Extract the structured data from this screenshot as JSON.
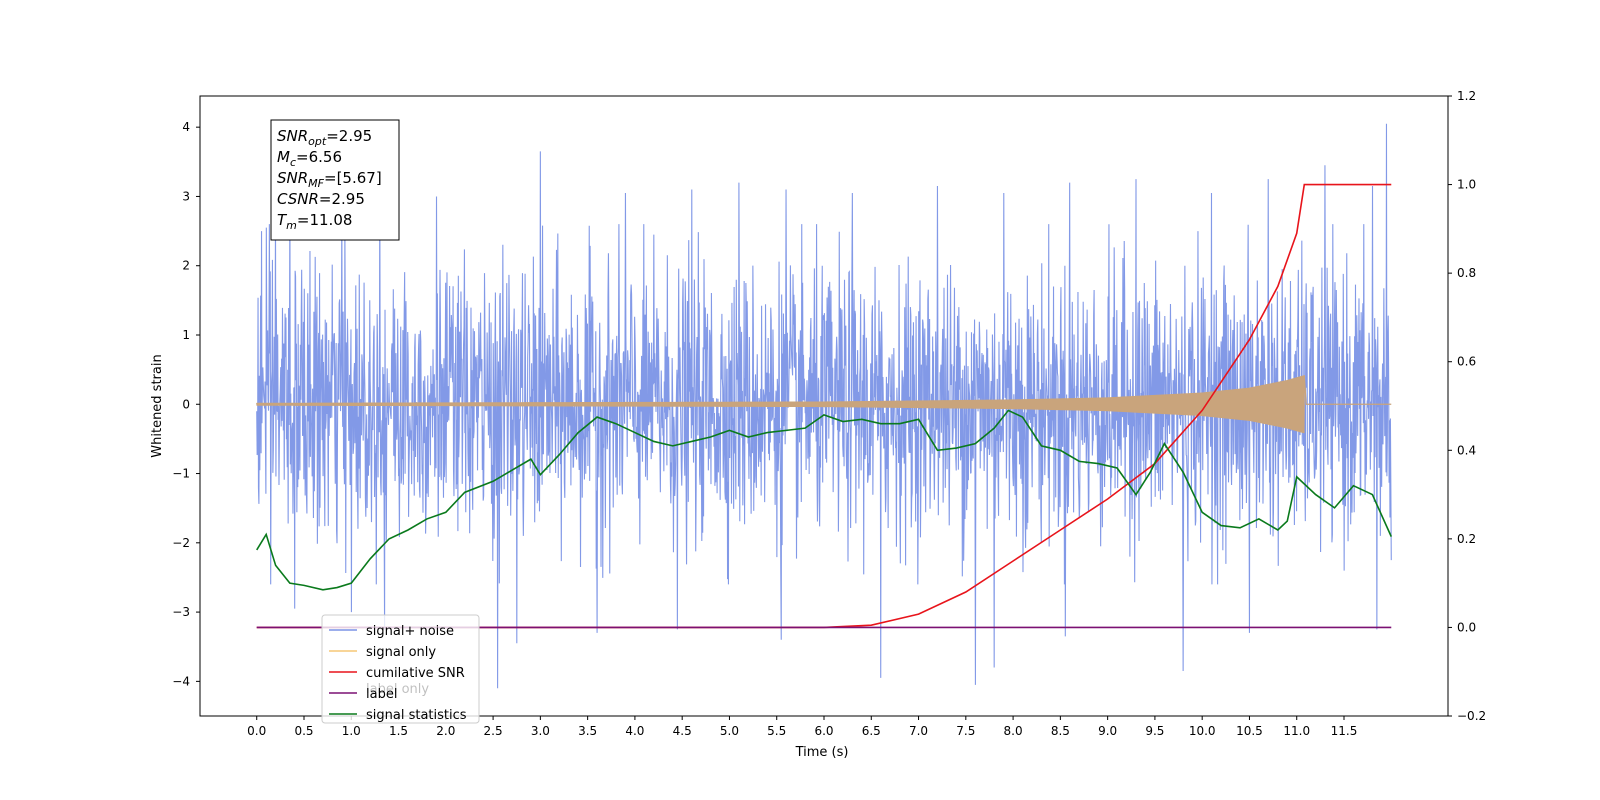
{
  "chart_data": {
    "type": "line",
    "xlabel": "Time (s)",
    "ylabel": "Whitened strain",
    "xlim": [
      -0.6,
      12.6
    ],
    "ylim": [
      -4.5,
      4.45
    ],
    "y2lim": [
      -0.2,
      1.2
    ],
    "x_ticks": [
      "0.0",
      "0.5",
      "1.0",
      "1.5",
      "2.0",
      "2.5",
      "3.0",
      "3.5",
      "4.0",
      "4.5",
      "5.0",
      "5.5",
      "6.0",
      "6.5",
      "7.0",
      "7.5",
      "8.0",
      "8.5",
      "9.0",
      "9.5",
      "10.0",
      "10.5",
      "11.0",
      "11.5"
    ],
    "y_ticks": [
      "-4",
      "-3",
      "-2",
      "-1",
      "0",
      "1",
      "2",
      "3",
      "4"
    ],
    "y2_ticks": [
      "-0.2",
      "0.0",
      "0.2",
      "0.4",
      "0.6",
      "0.8",
      "1.0",
      "1.2"
    ],
    "grid": false,
    "legend_position": "lower-left",
    "legend": [
      {
        "label": "signal+ noise",
        "color": "#7b93e6"
      },
      {
        "label": "signal only",
        "color": "#f6c777"
      },
      {
        "label": "cumilative SNR",
        "color": "#e8141b"
      },
      {
        "label": "label",
        "color": "#7b1173"
      },
      {
        "label": "signal statistics",
        "color": "#0a7a1c"
      }
    ],
    "legend_overlap_text": [
      "label only"
    ],
    "annotations": [
      {
        "text": "SNR",
        "sub": "opt",
        "value": "=2.95"
      },
      {
        "text": "M",
        "sub": "c",
        "value": "=6.56"
      },
      {
        "text": "SNR",
        "sub": "MF",
        "value": "=[5.67]"
      },
      {
        "text": "CSNR",
        "sub": "",
        "value": "=2.95"
      },
      {
        "text": "T",
        "sub": "m",
        "value": "=11.08"
      }
    ],
    "series": [
      {
        "name": "signal+ noise",
        "axis": "left",
        "color": "#7b93e6",
        "description": "whitened noise spanning t=0 to 12, central band ~-1.7 to 1.7",
        "x_range": [
          0,
          12
        ],
        "peaks": [
          {
            "x": 0.05,
            "y": 2.5
          },
          {
            "x": 0.1,
            "y": 2.55
          },
          {
            "x": 0.2,
            "y": 2.7
          },
          {
            "x": 0.35,
            "y": 3.0
          },
          {
            "x": 0.9,
            "y": 2.8
          },
          {
            "x": 1.3,
            "y": 3.2
          },
          {
            "x": 1.9,
            "y": 3.0
          },
          {
            "x": 2.55,
            "y": 3.45
          },
          {
            "x": 3.0,
            "y": 3.65
          },
          {
            "x": 3.9,
            "y": 3.05
          },
          {
            "x": 4.6,
            "y": 3.1
          },
          {
            "x": 5.1,
            "y": 3.2
          },
          {
            "x": 5.6,
            "y": 3.1
          },
          {
            "x": 6.3,
            "y": 3.05
          },
          {
            "x": 7.2,
            "y": 3.15
          },
          {
            "x": 7.9,
            "y": 3.05
          },
          {
            "x": 8.6,
            "y": 3.2
          },
          {
            "x": 9.3,
            "y": 3.25
          },
          {
            "x": 10.1,
            "y": 3.05
          },
          {
            "x": 10.7,
            "y": 3.25
          },
          {
            "x": 11.3,
            "y": 3.45
          },
          {
            "x": 11.8,
            "y": 3.15
          },
          {
            "x": 11.95,
            "y": 4.05
          }
        ],
        "troughs": [
          {
            "x": 0.15,
            "y": -2.6
          },
          {
            "x": 0.4,
            "y": -2.95
          },
          {
            "x": 1.0,
            "y": -3.0
          },
          {
            "x": 1.35,
            "y": -3.25
          },
          {
            "x": 2.55,
            "y": -4.1
          },
          {
            "x": 2.75,
            "y": -3.45
          },
          {
            "x": 3.6,
            "y": -3.3
          },
          {
            "x": 4.45,
            "y": -3.25
          },
          {
            "x": 5.55,
            "y": -3.4
          },
          {
            "x": 6.6,
            "y": -3.95
          },
          {
            "x": 7.6,
            "y": -4.05
          },
          {
            "x": 7.8,
            "y": -3.8
          },
          {
            "x": 8.55,
            "y": -3.35
          },
          {
            "x": 9.8,
            "y": -3.85
          },
          {
            "x": 10.5,
            "y": -3.3
          },
          {
            "x": 11.85,
            "y": -3.25
          },
          {
            "x": 12.0,
            "y": -2.25
          }
        ]
      },
      {
        "name": "signal only",
        "axis": "left",
        "color": "#c9a47c",
        "envelope": [
          [
            0,
            0.02
          ],
          [
            3,
            0.03
          ],
          [
            6,
            0.04
          ],
          [
            8,
            0.07
          ],
          [
            9,
            0.1
          ],
          [
            10,
            0.17
          ],
          [
            10.5,
            0.24
          ],
          [
            10.9,
            0.35
          ],
          [
            11.08,
            0.42
          ]
        ],
        "end_x": 11.08
      },
      {
        "name": "cumilative SNR",
        "axis": "right",
        "color": "#e8141b",
        "x": [
          0,
          6.0,
          6.5,
          7.0,
          7.5,
          8.0,
          8.5,
          9.0,
          9.5,
          10.0,
          10.5,
          10.8,
          11.0,
          11.08,
          12.0
        ],
        "y": [
          0.0,
          0.0,
          0.005,
          0.03,
          0.08,
          0.15,
          0.22,
          0.29,
          0.37,
          0.49,
          0.65,
          0.77,
          0.89,
          1.0,
          1.0
        ]
      },
      {
        "name": "label",
        "axis": "right",
        "color": "#7b1173",
        "x": [
          0,
          12
        ],
        "y": [
          0.0,
          0.0
        ]
      },
      {
        "name": "signal statistics",
        "axis": "right",
        "color": "#0a7a1c",
        "x": [
          0.0,
          0.1,
          0.2,
          0.35,
          0.5,
          0.7,
          0.85,
          1.0,
          1.2,
          1.4,
          1.6,
          1.8,
          2.0,
          2.2,
          2.5,
          2.7,
          2.9,
          3.0,
          3.2,
          3.4,
          3.6,
          3.8,
          4.0,
          4.2,
          4.4,
          4.6,
          4.8,
          5.0,
          5.2,
          5.4,
          5.6,
          5.8,
          6.0,
          6.2,
          6.4,
          6.6,
          6.8,
          7.0,
          7.2,
          7.4,
          7.6,
          7.8,
          7.95,
          8.1,
          8.3,
          8.5,
          8.7,
          8.9,
          9.1,
          9.3,
          9.45,
          9.6,
          9.8,
          10.0,
          10.2,
          10.4,
          10.6,
          10.8,
          10.9,
          11.0,
          11.2,
          11.4,
          11.6,
          11.8,
          12.0
        ],
        "y": [
          0.175,
          0.21,
          0.14,
          0.1,
          0.095,
          0.085,
          0.09,
          0.1,
          0.155,
          0.2,
          0.22,
          0.245,
          0.26,
          0.305,
          0.33,
          0.355,
          0.38,
          0.345,
          0.39,
          0.44,
          0.475,
          0.46,
          0.44,
          0.42,
          0.41,
          0.42,
          0.43,
          0.445,
          0.43,
          0.44,
          0.445,
          0.45,
          0.48,
          0.465,
          0.47,
          0.46,
          0.46,
          0.47,
          0.4,
          0.405,
          0.415,
          0.45,
          0.49,
          0.475,
          0.41,
          0.4,
          0.375,
          0.37,
          0.36,
          0.3,
          0.35,
          0.415,
          0.35,
          0.26,
          0.23,
          0.225,
          0.245,
          0.22,
          0.24,
          0.34,
          0.3,
          0.27,
          0.32,
          0.3,
          0.205
        ]
      }
    ]
  }
}
